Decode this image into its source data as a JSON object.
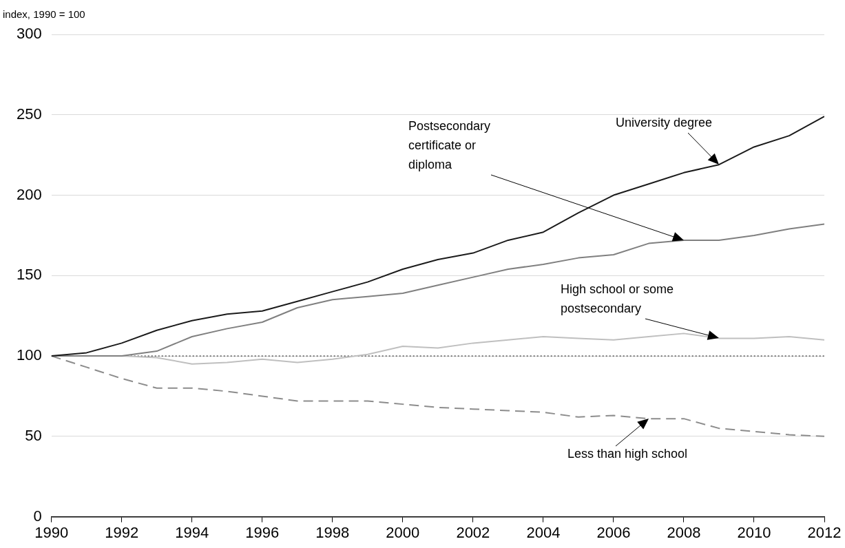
{
  "chart_data": {
    "type": "line",
    "ylabel": "index, 1990 = 100",
    "x": [
      1990,
      1991,
      1992,
      1993,
      1994,
      1995,
      1996,
      1997,
      1998,
      1999,
      2000,
      2001,
      2002,
      2003,
      2004,
      2005,
      2006,
      2007,
      2008,
      2009,
      2010,
      2011,
      2012
    ],
    "xlim": [
      1990,
      2012
    ],
    "xticks": [
      1990,
      1992,
      1994,
      1996,
      1998,
      2000,
      2002,
      2004,
      2006,
      2008,
      2010,
      2012
    ],
    "ylim": [
      0,
      300
    ],
    "yticks": [
      0,
      50,
      100,
      150,
      200,
      250,
      300
    ],
    "grid": "y",
    "legend": false,
    "marker": "none",
    "series": [
      {
        "name": "University degree",
        "color": "#1a1a1a",
        "line_style": "solid",
        "values": [
          100,
          102,
          108,
          116,
          122,
          126,
          128,
          134,
          140,
          146,
          154,
          160,
          164,
          172,
          177,
          189,
          200,
          207,
          214,
          219,
          230,
          237,
          249
        ]
      },
      {
        "name": "Postsecondary certificate or diploma",
        "color": "#7f7f7f",
        "line_style": "solid",
        "values": [
          100,
          100,
          100,
          103,
          112,
          117,
          121,
          130,
          135,
          137,
          139,
          144,
          149,
          154,
          157,
          161,
          163,
          170,
          172,
          172,
          175,
          179,
          182
        ]
      },
      {
        "name": "High school or some postsecondary",
        "color": "#bfbfbf",
        "line_style": "solid",
        "values": [
          100,
          100,
          100,
          99,
          95,
          96,
          98,
          96,
          98,
          101,
          106,
          105,
          108,
          110,
          112,
          111,
          110,
          112,
          114,
          111,
          111,
          112,
          110
        ]
      },
      {
        "name": "Less than high school",
        "color": "#8c8c8c",
        "line_style": "dashed",
        "values": [
          100,
          93,
          86,
          80,
          80,
          78,
          75,
          72,
          72,
          72,
          70,
          68,
          67,
          66,
          65,
          62,
          63,
          61,
          61,
          55,
          53,
          51,
          50
        ]
      }
    ],
    "ref_lines": [
      {
        "axis": "y",
        "value": 100,
        "color": "#000000",
        "line_style": "dotted"
      }
    ]
  }
}
